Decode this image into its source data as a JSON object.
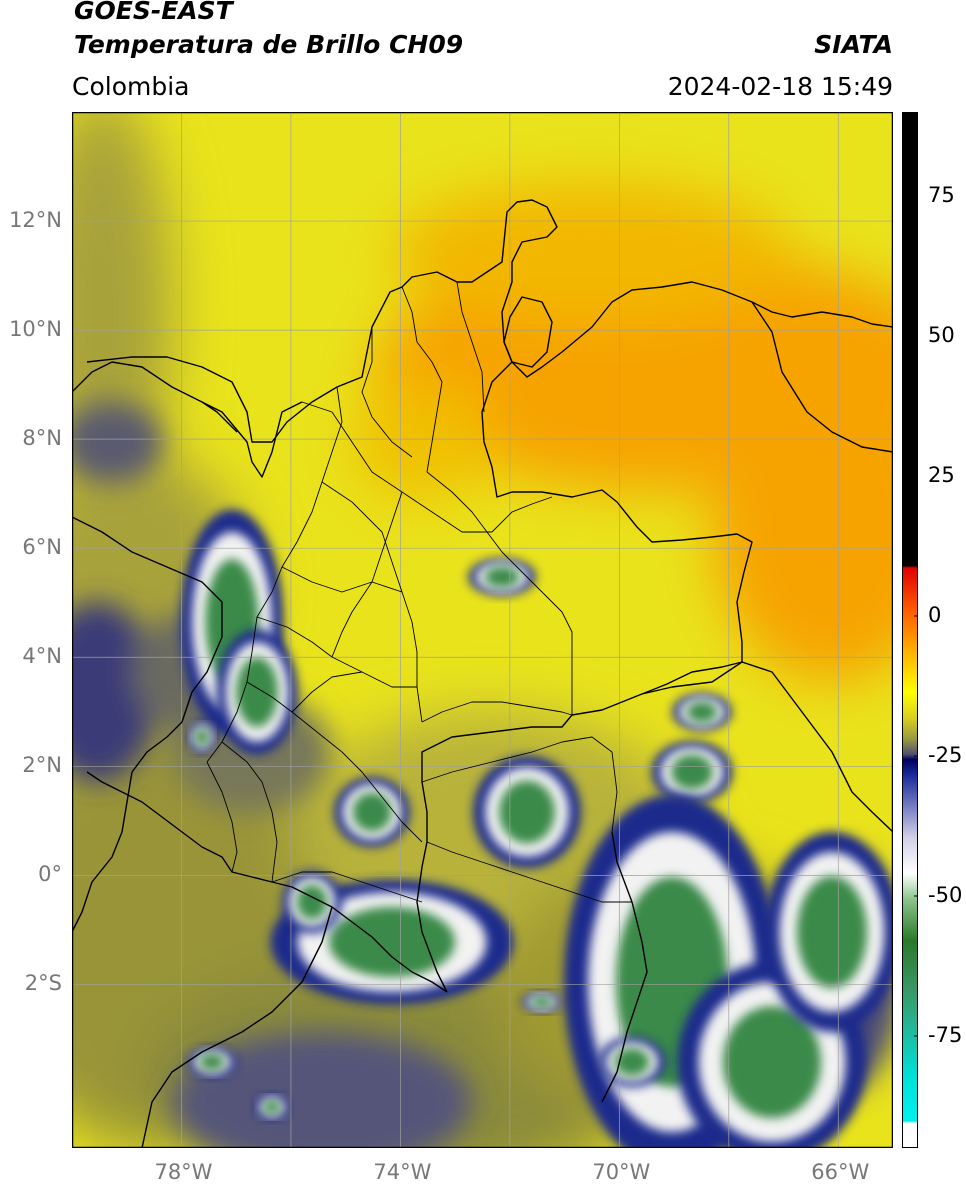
{
  "header": {
    "satellite": "GOES-EAST",
    "product": "Temperatura de Brillo CH09",
    "region": "Colombia",
    "agency": "SIATA",
    "datetime": "2024-02-18 15:49"
  },
  "map": {
    "lat_ticks": [
      {
        "value": 12,
        "label": "12°N"
      },
      {
        "value": 10,
        "label": "10°N"
      },
      {
        "value": 8,
        "label": "8°N"
      },
      {
        "value": 6,
        "label": "6°N"
      },
      {
        "value": 4,
        "label": "4°N"
      },
      {
        "value": 2,
        "label": "2°N"
      },
      {
        "value": 0,
        "label": "0°"
      },
      {
        "value": -2,
        "label": "2°S"
      }
    ],
    "lon_ticks": [
      {
        "value": -78,
        "label": "78°W"
      },
      {
        "value": -74,
        "label": "74°W"
      },
      {
        "value": -70,
        "label": "70°W"
      },
      {
        "value": -66,
        "label": "66°W"
      }
    ],
    "lon_range": [
      -80,
      -65
    ],
    "lat_range": [
      -5,
      14
    ],
    "colors": {
      "land_clear": "#e8e51a",
      "warm_region": "#f5a000",
      "olive": "#a09a2a",
      "grey_olive": "#6a6a50",
      "deep_blue": "#1c2a8c",
      "cloud_white": "#f2f2f2",
      "cloud_green": "#3a8a4a",
      "grid": "#a0a0a0"
    }
  },
  "colorbar": {
    "ticks": [
      {
        "value": 75,
        "label": "75"
      },
      {
        "value": 50,
        "label": "50"
      },
      {
        "value": 25,
        "label": "25"
      },
      {
        "value": 0,
        "label": "0"
      },
      {
        "value": -25,
        "label": "-25"
      },
      {
        "value": -50,
        "label": "-50"
      },
      {
        "value": -75,
        "label": "-75"
      }
    ]
  }
}
